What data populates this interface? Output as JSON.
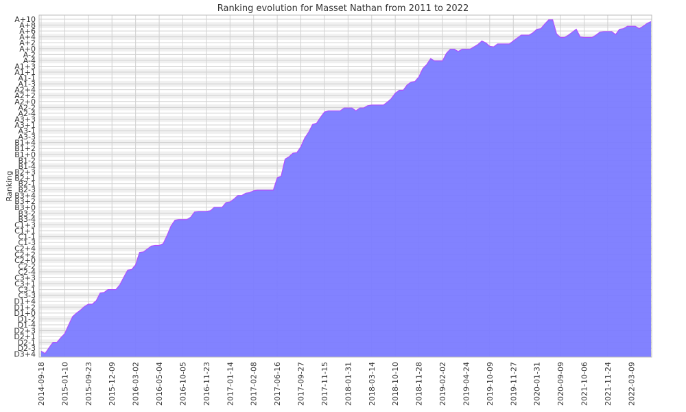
{
  "chart_data": {
    "type": "area",
    "title": "Ranking evolution for Masset Nathan from 2011 to 2022",
    "y_label": "Ranking",
    "color": "#7b7bff",
    "line_color": "#b050ff",
    "grid": true,
    "ylim": [
      -0.5,
      57.7
    ],
    "yticks": [
      {
        "value": 0,
        "label": "D3+4"
      },
      {
        "value": 1,
        "label": "D2-3"
      },
      {
        "value": 2,
        "label": "D2-1"
      },
      {
        "value": 3,
        "label": "D2+1"
      },
      {
        "value": 4,
        "label": "D2+3"
      },
      {
        "value": 5,
        "label": "D1-4"
      },
      {
        "value": 6,
        "label": "D1-2"
      },
      {
        "value": 7,
        "label": "D1+0"
      },
      {
        "value": 8,
        "label": "D1+2"
      },
      {
        "value": 9,
        "label": "D1+4"
      },
      {
        "value": 10,
        "label": "C3-3"
      },
      {
        "value": 11,
        "label": "C3-1"
      },
      {
        "value": 12,
        "label": "C3+1"
      },
      {
        "value": 13,
        "label": "C3+3"
      },
      {
        "value": 14,
        "label": "C2-4"
      },
      {
        "value": 15,
        "label": "C2-2"
      },
      {
        "value": 16,
        "label": "C2+0"
      },
      {
        "value": 17,
        "label": "C2+2"
      },
      {
        "value": 18,
        "label": "C2+4"
      },
      {
        "value": 19,
        "label": "C1-3"
      },
      {
        "value": 20,
        "label": "C1-1"
      },
      {
        "value": 21,
        "label": "C1+1"
      },
      {
        "value": 22,
        "label": "C1+3"
      },
      {
        "value": 23,
        "label": "B3-4"
      },
      {
        "value": 24,
        "label": "B3-2"
      },
      {
        "value": 25,
        "label": "B3+0"
      },
      {
        "value": 26,
        "label": "B3+2"
      },
      {
        "value": 27,
        "label": "B3+4"
      },
      {
        "value": 28,
        "label": "B2-3"
      },
      {
        "value": 29,
        "label": "B2-1"
      },
      {
        "value": 30,
        "label": "B2+1"
      },
      {
        "value": 31,
        "label": "B2+3"
      },
      {
        "value": 32,
        "label": "B1-4"
      },
      {
        "value": 33,
        "label": "B1-2"
      },
      {
        "value": 34,
        "label": "B1+0"
      },
      {
        "value": 35,
        "label": "B1+2"
      },
      {
        "value": 36,
        "label": "B1+4"
      },
      {
        "value": 37,
        "label": "A3-3"
      },
      {
        "value": 38,
        "label": "A3-1"
      },
      {
        "value": 39,
        "label": "A3+1"
      },
      {
        "value": 40,
        "label": "A3+3"
      },
      {
        "value": 41,
        "label": "A2-4"
      },
      {
        "value": 42,
        "label": "A2-2"
      },
      {
        "value": 43,
        "label": "A2+0"
      },
      {
        "value": 44,
        "label": "A2+2"
      },
      {
        "value": 45,
        "label": "A2+4"
      },
      {
        "value": 46,
        "label": "A1-3"
      },
      {
        "value": 47,
        "label": "A1-1"
      },
      {
        "value": 48,
        "label": "A1+1"
      },
      {
        "value": 49,
        "label": "A1+3"
      },
      {
        "value": 50,
        "label": "A-4"
      },
      {
        "value": 51,
        "label": "A-2"
      },
      {
        "value": 52,
        "label": "A+0"
      },
      {
        "value": 53,
        "label": "A+2"
      },
      {
        "value": 54,
        "label": "A+4"
      },
      {
        "value": 55,
        "label": "A+6"
      },
      {
        "value": 56,
        "label": "A+8"
      },
      {
        "value": 57,
        "label": "A+10"
      }
    ],
    "categories": [
      "2014-09-18",
      null,
      null,
      null,
      null,
      null,
      "2015-01-10",
      null,
      null,
      null,
      null,
      null,
      "2015-09-23",
      null,
      null,
      null,
      null,
      null,
      "2015-12-09",
      null,
      null,
      null,
      null,
      null,
      "2016-03-02",
      null,
      null,
      null,
      null,
      null,
      "2016-05-04",
      null,
      null,
      null,
      null,
      null,
      "2016-10-05",
      null,
      null,
      null,
      null,
      null,
      "2016-11-23",
      null,
      null,
      null,
      null,
      null,
      "2017-01-14",
      null,
      null,
      null,
      null,
      null,
      "2017-02-08",
      null,
      null,
      null,
      null,
      null,
      "2017-06-16",
      null,
      null,
      null,
      null,
      null,
      "2017-09-27",
      null,
      null,
      null,
      null,
      null,
      "2017-11-15",
      null,
      null,
      null,
      null,
      null,
      "2018-01-31",
      null,
      null,
      null,
      null,
      null,
      "2018-03-14",
      null,
      null,
      null,
      null,
      null,
      "2018-10-10",
      null,
      null,
      null,
      null,
      null,
      "2018-11-28",
      null,
      null,
      null,
      null,
      null,
      "2019-02-02",
      null,
      null,
      null,
      null,
      null,
      "2019-04-24",
      null,
      null,
      null,
      null,
      null,
      "2019-10-09",
      null,
      null,
      null,
      null,
      null,
      "2019-11-27",
      null,
      null,
      null,
      null,
      null,
      "2020-01-31",
      null,
      null,
      null,
      null,
      null,
      "2020-09-09",
      null,
      null,
      null,
      null,
      null,
      "2021-10-06",
      null,
      null,
      null,
      null,
      null,
      "2021-11-24",
      null,
      null,
      null,
      null,
      null,
      "2022-03-09",
      null,
      null,
      null,
      null,
      null
    ],
    "values": [
      0.5,
      0.1,
      1.1,
      2,
      2,
      2.8,
      3.5,
      5,
      6.4,
      7,
      7.5,
      8.1,
      8.5,
      8.5,
      9.1,
      10.4,
      10.5,
      11,
      11,
      11,
      11.8,
      13.1,
      14.3,
      14.4,
      15.2,
      17.3,
      17.4,
      17.9,
      18.4,
      18.5,
      18.5,
      18.8,
      20.2,
      21.8,
      22.8,
      22.9,
      22.9,
      22.9,
      23.3,
      24.2,
      24.3,
      24.3,
      24.3,
      24.4,
      25,
      25,
      25,
      25.8,
      25.9,
      26.4,
      27,
      27,
      27.4,
      27.5,
      27.8,
      27.9,
      27.9,
      27.9,
      27.9,
      27.9,
      30,
      30.3,
      33.2,
      33.6,
      34.2,
      34.3,
      35.3,
      36.8,
      37.8,
      39.1,
      39.3,
      40.3,
      41.2,
      41.4,
      41.4,
      41.4,
      41.4,
      41.9,
      41.9,
      41.9,
      41.4,
      41.9,
      41.9,
      42.3,
      42.4,
      42.4,
      42.4,
      42.4,
      42.9,
      43.5,
      44.4,
      44.9,
      44.9,
      45.8,
      46.3,
      46.4,
      47.2,
      48.6,
      49.3,
      50.3,
      49.9,
      49.9,
      49.9,
      51.2,
      51.9,
      51.9,
      51.5,
      51.9,
      51.9,
      51.9,
      52.3,
      52.7,
      53.3,
      53,
      52.4,
      52.3,
      52.8,
      52.8,
      52.8,
      52.8,
      53.3,
      53.8,
      54.3,
      54.3,
      54.3,
      54.7,
      55.3,
      55.4,
      56.2,
      56.9,
      56.9,
      54.5,
      53.9,
      53.9,
      54.3,
      54.8,
      55.3,
      54,
      53.9,
      53.9,
      53.9,
      54.3,
      54.8,
      54.9,
      54.9,
      54.9,
      54.4,
      55.3,
      55.4,
      55.8,
      55.8,
      55.8,
      55.4,
      55.8,
      56.3,
      56.6
    ]
  }
}
